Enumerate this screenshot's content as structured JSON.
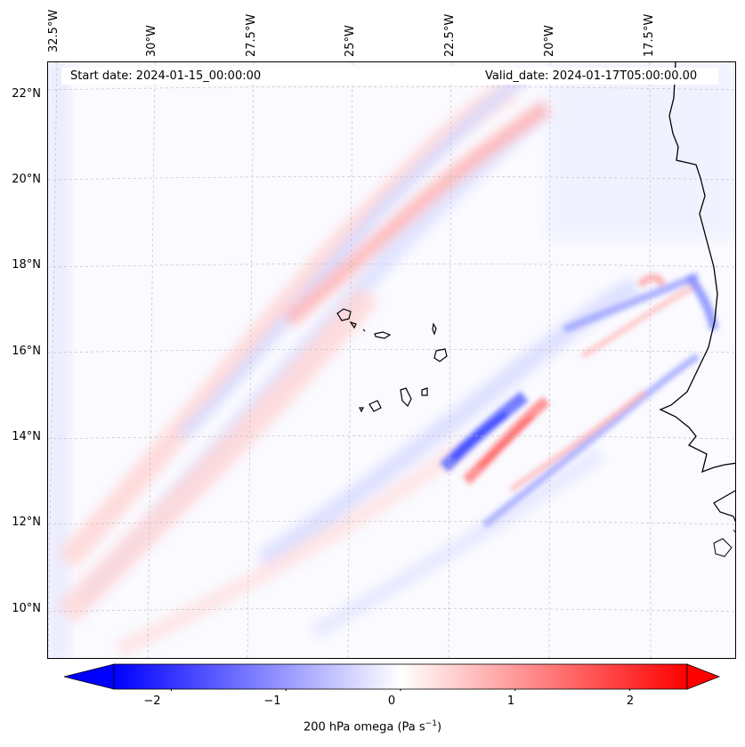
{
  "map": {
    "start_date": "Start date: 2024-01-15_00:00:00",
    "valid_date": "Valid_date: 2024-01-17T05:00:00.00",
    "longitude_labels": [
      "32.5°W",
      "30°W",
      "27.5°W",
      "25°W",
      "22.5°W",
      "20°W",
      "17.5°W"
    ],
    "latitude_labels": [
      "22°N",
      "20°N",
      "18°N",
      "16°N",
      "14°N",
      "12°N",
      "10°N"
    ],
    "gridlines": true,
    "field_colors": {
      "negative": "#0000ff",
      "zero": "#ffffff",
      "positive": "#ff0000"
    }
  },
  "colorbar": {
    "tick_labels": [
      "−2",
      "−1",
      "0",
      "1",
      "2"
    ],
    "tick_values": [
      -2,
      -1,
      0,
      1,
      2
    ],
    "range": [
      -2.5,
      2.5
    ],
    "extend": "both",
    "label_prefix": "200 hPa omega (Pa s",
    "label_exponent": "−1",
    "label_suffix": ")"
  }
}
